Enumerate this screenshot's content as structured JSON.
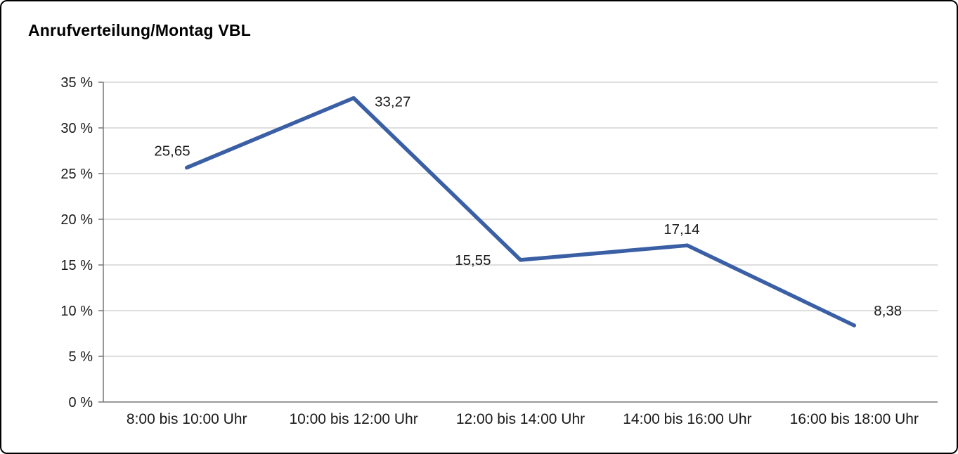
{
  "chart_data": {
    "type": "line",
    "title": "Anrufverteilung/Montag VBL",
    "categories": [
      "8:00 bis 10:00 Uhr",
      "10:00 bis 12:00 Uhr",
      "12:00 bis 14:00 Uhr",
      "14:00 bis 16:00 Uhr",
      "16:00 bis 18:00 Uhr"
    ],
    "values": [
      25.65,
      33.27,
      15.55,
      17.14,
      8.38
    ],
    "value_labels": [
      "25,65",
      "33,27",
      "15,55",
      "17,14",
      "8,38"
    ],
    "xlabel": "",
    "ylabel": "",
    "ylim": [
      0,
      35
    ],
    "ytick_step": 5,
    "ytick_suffix": " %",
    "ytick_labels": [
      "0 %",
      "5 %",
      "10 %",
      "15 %",
      "20 %",
      "25 %",
      "30 %",
      "35 %"
    ],
    "grid": true,
    "legend": "none",
    "line_color": "#3a5fa5"
  }
}
